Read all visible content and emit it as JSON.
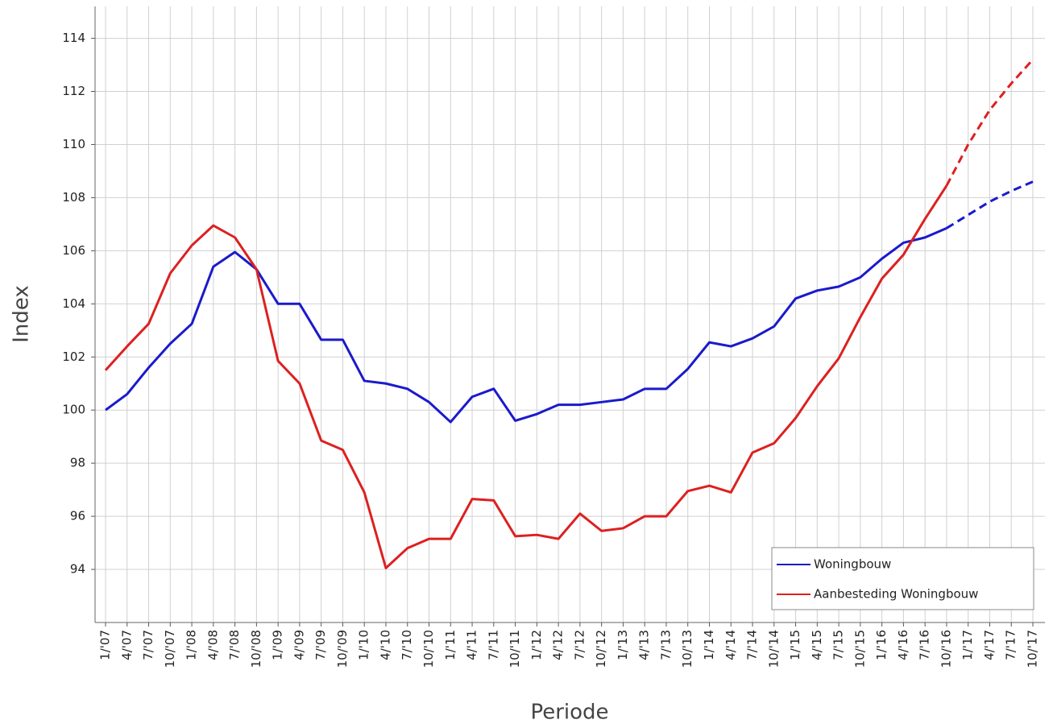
{
  "chart_data": {
    "type": "line",
    "x_label": "Periode",
    "y_label": "Index",
    "categories": [
      "1/'07",
      "4/'07",
      "7/'07",
      "10/'07",
      "1/'08",
      "4/'08",
      "7/'08",
      "10/'08",
      "1/'09",
      "4/'09",
      "7/'09",
      "10/'09",
      "1/'10",
      "4/'10",
      "7/'10",
      "10/'10",
      "1/'11",
      "4/'11",
      "7/'11",
      "10/'11",
      "1/'12",
      "4/'12",
      "7/'12",
      "10/'12",
      "1/'13",
      "4/'13",
      "7/'13",
      "10/'13",
      "1/'14",
      "4/'14",
      "7/'14",
      "10/'14",
      "1/'15",
      "4/'15",
      "7/'15",
      "10/'15",
      "1/'16",
      "4/'16",
      "7/'16",
      "10/'16",
      "1/'17",
      "4/'17",
      "7/'17",
      "10/'17"
    ],
    "series": [
      {
        "name": "Woningbouw",
        "color": "#1a1acc",
        "dashed_from": 39,
        "values": [
          100.0,
          100.6,
          101.6,
          102.5,
          103.25,
          105.4,
          105.95,
          105.3,
          104.0,
          104.0,
          102.65,
          102.65,
          101.1,
          101.0,
          100.8,
          100.3,
          99.55,
          100.5,
          100.8,
          99.6,
          99.85,
          100.2,
          100.2,
          100.3,
          100.4,
          100.8,
          100.8,
          101.55,
          102.55,
          102.4,
          102.7,
          103.15,
          104.2,
          104.5,
          104.65,
          105.0,
          105.7,
          106.3,
          106.5,
          106.85,
          107.35,
          107.85,
          108.25,
          108.6
        ]
      },
      {
        "name": "Aanbesteding Woningbouw",
        "color": "#dd2020",
        "dashed_from": 39,
        "values": [
          101.5,
          102.4,
          103.25,
          105.15,
          106.2,
          106.95,
          106.5,
          105.3,
          101.85,
          101.0,
          98.85,
          98.5,
          96.9,
          94.05,
          94.8,
          95.15,
          95.15,
          96.65,
          96.6,
          95.25,
          95.3,
          95.15,
          96.1,
          95.45,
          95.55,
          96.0,
          96.0,
          96.95,
          97.15,
          96.9,
          98.4,
          98.75,
          99.7,
          100.9,
          101.95,
          103.5,
          104.95,
          105.85,
          107.2,
          108.45,
          110.0,
          111.3,
          112.3,
          113.2
        ]
      }
    ],
    "ylim": [
      92,
      115.2
    ],
    "yticks": [
      94,
      96,
      98,
      100,
      102,
      104,
      106,
      108,
      110,
      112,
      114
    ],
    "grid": true,
    "legend": "lower right"
  }
}
